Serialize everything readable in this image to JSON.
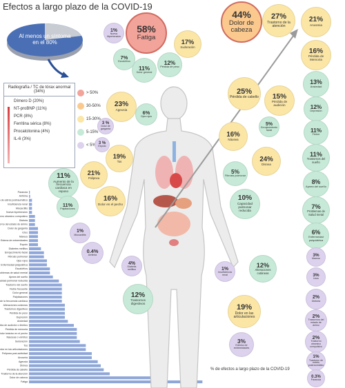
{
  "title": "Efectos a largo plazo de la COVID-19",
  "summary": "Al menos un síntoma en el 80%",
  "lab_tests": {
    "title": "Radiografía / TC de tórax anormal (34%)",
    "items": [
      "Dímero D (20%)",
      "NT-proBNP (11%)",
      "PCR (8%)",
      "Ferritina sérica (8%)",
      "Procalcitonina (4%)",
      "IL-6 (3%)"
    ]
  },
  "legend": [
    {
      "label": "> 50%",
      "color": "#f2a39a"
    },
    {
      "label": "30-50%",
      "color": "#fbc98e"
    },
    {
      "label": "15-30%",
      "color": "#fbe6a6"
    },
    {
      "label": "5-15%",
      "color": "#c6ead7"
    },
    {
      "label": "< 5%",
      "color": "#ddd2ee"
    }
  ],
  "bubbles": [
    {
      "value": "58%",
      "label": "Fatiga",
      "color": "#f2a39a"
    },
    {
      "value": "44%",
      "label": "Dolor de cabeza",
      "color": "#fbc98e"
    },
    {
      "value": "27%",
      "label": "Trastorno de la atención",
      "color": "#fbe6a6"
    },
    {
      "value": "1%",
      "label": "Nueva Hipertensión",
      "color": "#ddd2ee"
    },
    {
      "value": "7%",
      "label": "Escalofríos",
      "color": "#c6ead7"
    },
    {
      "value": "11%",
      "label": "Dolor general",
      "color": "#c6ead7"
    },
    {
      "value": "12%",
      "label": "Pérdida de peso",
      "color": "#c6ead7"
    },
    {
      "value": "17%",
      "label": "Sudoración",
      "color": "#fbe6a6"
    },
    {
      "value": "23%",
      "label": "Ageusia",
      "color": "#fbe6a6"
    },
    {
      "value": "6%",
      "label": "Ojos rojos",
      "color": "#c6ead7"
    },
    {
      "value": "25%",
      "label": "Pérdida de cabello",
      "color": "#fbe6a6"
    },
    {
      "value": "15%",
      "label": "Pérdida de audición",
      "color": "#fbe6a6"
    },
    {
      "value": "3 %",
      "label": "Dolor de garganta",
      "color": "#ddd2ee"
    },
    {
      "value": "3 %",
      "label": "Esputo",
      "color": "#ddd2ee"
    },
    {
      "value": "19%",
      "label": "Tos",
      "color": "#fbe6a6"
    },
    {
      "value": "16%",
      "label": "Náusea",
      "color": "#fbe6a6"
    },
    {
      "value": "5%",
      "label": "Enrojecimiento facial",
      "color": "#c6ead7"
    },
    {
      "value": "24%",
      "label": "Disnea",
      "color": "#fbe6a6"
    },
    {
      "value": "11%",
      "label": "Aumento de la frecuencia cardiaca en reposo",
      "color": "#c6ead7"
    },
    {
      "value": "21%",
      "label": "Polipnea",
      "color": "#fbe6a6"
    },
    {
      "value": "5%",
      "label": "Fibrosis pulmonar",
      "color": "#c6ead7"
    },
    {
      "value": "11%",
      "label": "Palpitaciones",
      "color": "#c6ead7"
    },
    {
      "value": "16%",
      "label": "Dolor en el pecho",
      "color": "#fbe6a6"
    },
    {
      "value": "10%",
      "label": "Capacidad pulmonar reducida",
      "color": "#c6ead7"
    },
    {
      "value": "1%",
      "label": "Miocarditis",
      "color": "#ddd2ee"
    },
    {
      "value": "0.4%",
      "label": "Arritmia",
      "color": "#ddd2ee"
    },
    {
      "value": "4%",
      "label": "Diabetis mellitus",
      "color": "#ddd2ee"
    },
    {
      "value": "1%",
      "label": "Insuficiencia renal",
      "color": "#ddd2ee"
    },
    {
      "value": "12%",
      "label": "Alteraciones cutáneas",
      "color": "#c6ead7"
    },
    {
      "value": "12%",
      "label": "Trastornos digestivos",
      "color": "#c6ead7"
    },
    {
      "value": "19%",
      "label": "Dolor en las articulaciones",
      "color": "#fbe6a6"
    },
    {
      "value": "3%",
      "label": "Edema de extremidades",
      "color": "#ddd2ee"
    },
    {
      "value": "21%",
      "label": "Anosmia",
      "color": "#fbe6a6"
    },
    {
      "value": "16%",
      "label": "Pérdida de Memoria",
      "color": "#fbe6a6"
    },
    {
      "value": "13%",
      "label": "Ansiedad",
      "color": "#c6ead7"
    },
    {
      "value": "12%",
      "label": "Depresión",
      "color": "#c6ead7"
    },
    {
      "value": "11%",
      "label": "Fiebre",
      "color": "#c6ead7"
    },
    {
      "value": "11%",
      "label": "Trastornos del sueño",
      "color": "#c6ead7"
    },
    {
      "value": "8%",
      "label": "Apnea del sueño",
      "color": "#c6ead7"
    },
    {
      "value": "7%",
      "label": "Problemas de Salud metal",
      "color": "#c6ead7"
    },
    {
      "value": "6%",
      "label": "Enfermedad psiquiátrica",
      "color": "#c6ead7"
    },
    {
      "value": "3%",
      "label": "Mareos",
      "color": "#ddd2ee"
    },
    {
      "value": "3%",
      "label": "Ictus",
      "color": "#ddd2ee"
    },
    {
      "value": "2%",
      "label": "Disforia",
      "color": "#ddd2ee"
    },
    {
      "value": "2%",
      "label": "Trastornos del estado de ánimo",
      "color": "#ddd2ee"
    },
    {
      "value": "2%",
      "label": "Trastorno obsesivo compulsivo",
      "color": "#ddd2ee"
    },
    {
      "value": "1%",
      "label": "Trastorno de estrés postraumático",
      "color": "#ddd2ee"
    },
    {
      "value": "0.3%",
      "label": "Paranoia",
      "color": "#ddd2ee"
    }
  ],
  "chart_data": {
    "type": "bar",
    "orientation": "horizontal",
    "caption": "% de efectos a largo plazo de la COVID-19",
    "categories": [
      "Paranoia",
      "Arritmia",
      "Trastorno de estrés postraumático",
      "Insuficiencia renal",
      "Miocarditis",
      "Nueva hipertensión",
      "Trastorno obsesivo compulsivo",
      "Disforia",
      "Trastorno del estado de ánimo",
      "Dolor de garganta",
      "Ictus",
      "Mareos",
      "Edema de extremidades",
      "Esputo",
      "Diabetes mellitus",
      "Enrojecimiento facial",
      "Fibrosis pulmonar",
      "Ojos rojos",
      "Enfermedad psiquiátrica",
      "Escalofríos",
      "Problemas de salud mental",
      "Apnea del sueño",
      "Capacidad pulmonar reducida",
      "Trastorno del sueño",
      "Fiebre frecuente",
      "Dolor general",
      "Palpitaciones",
      "Aumento de la frecuencia cardiaca",
      "Alteraciones cutáneas",
      "Trastornos digestivos",
      "Pérdida de peso",
      "Depresión",
      "Ansiedad",
      "Pérdida de audición o tinnitus",
      "Pérdida de memoria",
      "Dolor torácico en el pecho",
      "Náuseas o vómitos",
      "Sudoración",
      "Tos",
      "Dolor en las articulaciones",
      "Polipnea post-actividad",
      "Anosmia",
      "Ageusia",
      "Disnea",
      "Pérdida de cabello",
      "Trastorno de la atención",
      "Dolor de cabeza",
      "Fatiga"
    ],
    "values": [
      0.3,
      0.4,
      1,
      1,
      1,
      1,
      2,
      2,
      2,
      3,
      3,
      3,
      3,
      3,
      4,
      5,
      5,
      6,
      6,
      7,
      7,
      8,
      10,
      11,
      11,
      11,
      11,
      11,
      12,
      12,
      12,
      12,
      13,
      15,
      16,
      16,
      16,
      17,
      19,
      19,
      21,
      21,
      23,
      24,
      25,
      27,
      44,
      58
    ],
    "color": "#8ea6d8",
    "xlim": [
      0,
      60
    ]
  }
}
